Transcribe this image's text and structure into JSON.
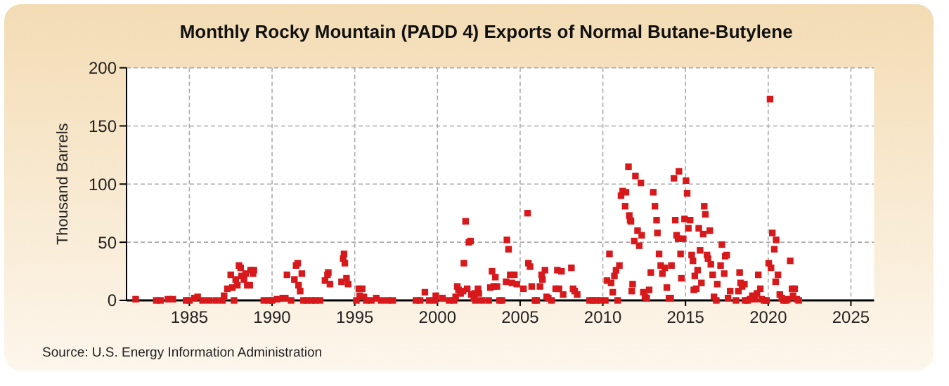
{
  "chart_data": {
    "type": "scatter",
    "title": "Monthly Rocky Mountain (PADD 4) Exports of Normal Butane-Butylene",
    "ylabel": "Thousand Barrels",
    "annotations": [
      "Source: U.S. Energy Information Administration"
    ],
    "xlim": [
      1981.2,
      2026.4
    ],
    "xticks": [
      1985,
      1990,
      1995,
      2000,
      2005,
      2010,
      2015,
      2020,
      2025
    ],
    "ylim": [
      0,
      200
    ],
    "yticks": [
      0,
      50,
      100,
      150,
      200
    ],
    "grid": true,
    "marker": "square",
    "series": [
      {
        "color": "#d7191c",
        "x": [
          1981.75,
          1983.0,
          1983.25,
          1983.7,
          1984.0,
          1984.8,
          1985.0,
          1985.3,
          1985.5,
          1985.8,
          1986.2,
          1986.6,
          1987.0,
          1987.1,
          1987.3,
          1987.5,
          1987.6,
          1987.7,
          1987.8,
          1987.9,
          1988.0,
          1988.1,
          1988.15,
          1988.3,
          1988.4,
          1988.5,
          1988.65,
          1988.7,
          1988.85,
          1988.9,
          1989.5,
          1989.8,
          1990.0,
          1990.3,
          1990.65,
          1990.8,
          1990.9,
          1991.15,
          1991.35,
          1991.45,
          1991.55,
          1991.6,
          1991.7,
          1991.8,
          1991.9,
          1992.1,
          1992.4,
          1992.6,
          1992.9,
          1993.2,
          1993.35,
          1993.4,
          1993.5,
          1994.2,
          1994.3,
          1994.35,
          1994.4,
          1994.5,
          1994.6,
          1995.1,
          1995.25,
          1995.3,
          1995.45,
          1995.55,
          1995.7,
          1996.0,
          1996.3,
          1996.6,
          1997.0,
          1997.3,
          1998.7,
          1998.95,
          1999.24,
          1999.5,
          1999.85,
          1999.9,
          2000.3,
          2000.7,
          2001.0,
          2001.1,
          2001.2,
          2001.27,
          2001.4,
          2001.55,
          2001.6,
          2001.7,
          2001.8,
          2001.9,
          2002.0,
          2002.05,
          2002.2,
          2002.25,
          2002.3,
          2002.45,
          2002.5,
          2002.7,
          2003.1,
          2003.2,
          2003.3,
          2003.4,
          2003.5,
          2003.6,
          2003.75,
          2003.9,
          2004.15,
          2004.2,
          2004.3,
          2004.4,
          2004.5,
          2004.65,
          2004.8,
          2005.2,
          2005.45,
          2005.5,
          2005.6,
          2005.7,
          2005.9,
          2006.0,
          2006.2,
          2006.3,
          2006.35,
          2006.5,
          2006.6,
          2006.7,
          2006.9,
          2007.15,
          2007.25,
          2007.35,
          2007.5,
          2007.6,
          2008.1,
          2008.2,
          2008.3,
          2008.45,
          2009.2,
          2009.4,
          2009.6,
          2009.85,
          2010.15,
          2010.25,
          2010.4,
          2010.5,
          2010.6,
          2010.7,
          2010.8,
          2010.9,
          2011.0,
          2011.1,
          2011.2,
          2011.35,
          2011.4,
          2011.55,
          2011.6,
          2011.65,
          2011.7,
          2011.75,
          2011.8,
          2011.9,
          2011.97,
          2012.1,
          2012.2,
          2012.3,
          2012.35,
          2012.45,
          2012.55,
          2012.65,
          2012.8,
          2012.9,
          2013.05,
          2013.15,
          2013.25,
          2013.3,
          2013.4,
          2013.5,
          2013.6,
          2013.75,
          2013.87,
          2014.0,
          2014.1,
          2014.15,
          2014.3,
          2014.38,
          2014.46,
          2014.55,
          2014.6,
          2014.7,
          2014.75,
          2014.86,
          2014.94,
          2015.03,
          2015.1,
          2015.17,
          2015.28,
          2015.37,
          2015.45,
          2015.5,
          2015.56,
          2015.65,
          2015.73,
          2015.8,
          2015.88,
          2015.96,
          2016.07,
          2016.13,
          2016.2,
          2016.3,
          2016.36,
          2016.47,
          2016.53,
          2016.64,
          2016.72,
          2016.86,
          2016.92,
          2017.12,
          2017.2,
          2017.34,
          2017.4,
          2017.49,
          2017.57,
          2017.7,
          2018.05,
          2018.2,
          2018.27,
          2018.33,
          2018.42,
          2018.56,
          2018.6,
          2018.75,
          2018.9,
          2019.04,
          2019.18,
          2019.32,
          2019.4,
          2019.52,
          2019.6,
          2019.75,
          2019.9,
          2020.03,
          2020.11,
          2020.17,
          2020.25,
          2020.37,
          2020.45,
          2020.48,
          2020.59,
          2020.7,
          2020.82,
          2020.93,
          2021.1,
          2021.2,
          2021.33,
          2021.44,
          2021.5,
          2021.6,
          2021.72,
          2021.84
        ],
        "values": [
          1,
          0,
          0,
          1,
          1,
          0,
          0,
          2,
          3,
          0,
          0,
          0,
          0,
          4,
          10,
          22,
          11,
          0,
          18,
          13,
          30,
          28,
          21,
          18,
          23,
          13,
          13,
          26,
          23,
          26,
          0,
          0,
          0,
          1,
          2,
          2,
          22,
          0,
          18,
          30,
          32,
          13,
          8,
          23,
          0,
          0,
          0,
          0,
          0,
          17,
          22,
          24,
          14,
          16,
          36,
          40,
          32,
          19,
          14,
          0,
          10,
          4,
          10,
          3,
          0,
          0,
          2,
          0,
          0,
          0,
          0,
          0,
          7,
          0,
          0,
          4,
          2,
          0,
          0,
          3,
          12,
          9,
          6,
          8,
          32,
          68,
          10,
          50,
          51,
          5,
          2,
          6,
          0,
          10,
          6,
          0,
          0,
          11,
          25,
          12,
          20,
          12,
          0,
          0,
          16,
          52,
          44,
          22,
          15,
          22,
          14,
          10,
          75,
          32,
          29,
          12,
          0,
          0,
          12,
          22,
          18,
          26,
          3,
          2,
          0,
          10,
          26,
          10,
          25,
          5,
          28,
          10,
          8,
          5,
          0,
          0,
          0,
          0,
          0,
          17,
          40,
          15,
          7,
          21,
          26,
          0,
          30,
          90,
          94,
          81,
          93,
          115,
          73,
          69,
          68,
          8,
          14,
          51,
          107,
          60,
          47,
          101,
          56,
          7,
          3,
          2,
          9,
          24,
          93,
          81,
          69,
          58,
          40,
          30,
          23,
          28,
          11,
          2,
          2,
          30,
          105,
          69,
          56,
          53,
          111,
          40,
          19,
          53,
          70,
          103,
          92,
          62,
          69,
          39,
          34,
          9,
          21,
          10,
          26,
          62,
          43,
          15,
          57,
          81,
          74,
          39,
          36,
          60,
          31,
          22,
          3,
          0,
          14,
          30,
          48,
          23,
          38,
          39,
          2,
          8,
          0,
          8,
          24,
          15,
          12,
          14,
          0,
          0,
          1,
          4,
          1,
          6,
          22,
          10,
          1,
          0,
          0,
          32,
          173,
          28,
          58,
          44,
          16,
          52,
          22,
          5,
          2,
          0,
          0,
          1,
          34,
          10,
          4,
          10,
          1,
          0
        ]
      }
    ]
  }
}
